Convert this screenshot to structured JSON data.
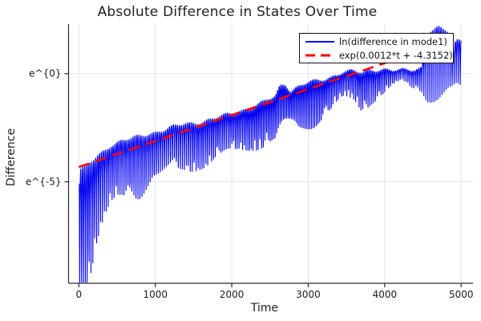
{
  "title": "Absolute Difference in States Over Time",
  "axes": {
    "x": {
      "label": "Time",
      "tick_labels": [
        "0",
        "1000",
        "2000",
        "3000",
        "4000",
        "5000"
      ],
      "tick_values": [
        0,
        1000,
        2000,
        3000,
        4000,
        5000
      ],
      "range": [
        -135,
        5155
      ]
    },
    "y": {
      "label": "Difference",
      "tick_labels": [
        "e^{0}",
        "e^{-5}"
      ],
      "tick_values_ln": [
        0,
        -5
      ],
      "range_ln": [
        -9.69,
        2.29
      ]
    }
  },
  "legend": {
    "items": [
      {
        "label": "ln(difference in mode1)",
        "color": "#0000ee",
        "style": "solid"
      },
      {
        "label": "exp(0.0012*t + -4.3152)",
        "color": "#ff0000",
        "style": "dashed"
      }
    ]
  },
  "colors": {
    "series_blue": "#0000ee",
    "fit_red": "#ff0000",
    "grid": "#e4e4e4",
    "spine": "#2a2a2a",
    "tick": "#2a2a2a"
  },
  "chart_data": {
    "type": "line",
    "title": "Absolute Difference in States Over Time",
    "xlabel": "Time",
    "ylabel": "Difference",
    "x_range": [
      -135,
      5155
    ],
    "y_range_ln": [
      -9.69,
      2.29
    ],
    "grid": true,
    "legend_position": "top-right",
    "series": [
      {
        "name": "ln(difference in mode1)",
        "color": "#0000ee",
        "style": "solid",
        "representation": "oscillating signal; ln of |difference| with downward spikes at zero crossings",
        "zero_crossing_spacing_t": 24,
        "envelope_t_lnTop_lnBottom": [
          [
            0,
            -4.5,
            -9.5
          ],
          [
            80,
            -4.35,
            -9.4
          ],
          [
            160,
            -4.1,
            -8.1
          ],
          [
            240,
            -3.85,
            -7.2
          ],
          [
            330,
            -3.55,
            -6.6
          ],
          [
            420,
            -3.3,
            -6.1
          ],
          [
            550,
            -3.1,
            -5.6
          ],
          [
            700,
            -3.0,
            -5.2
          ],
          [
            850,
            -2.85,
            -5.0
          ],
          [
            1000,
            -2.7,
            -4.8
          ],
          [
            1150,
            -2.55,
            -4.5
          ],
          [
            1300,
            -2.4,
            -4.4
          ],
          [
            1450,
            -2.3,
            -4.1
          ],
          [
            1600,
            -2.22,
            -3.9
          ],
          [
            1750,
            -2.1,
            -3.75
          ],
          [
            1900,
            -1.95,
            -3.65
          ],
          [
            2050,
            -1.78,
            -3.5
          ],
          [
            2200,
            -1.62,
            -3.2
          ],
          [
            2350,
            -1.45,
            -3.0
          ],
          [
            2480,
            -1.2,
            -2.85
          ],
          [
            2570,
            -1.05,
            -2.9
          ],
          [
            2630,
            -0.55,
            -2.9
          ],
          [
            2700,
            -0.45,
            -2.8
          ],
          [
            2770,
            -0.8,
            -2.5
          ],
          [
            2870,
            -0.62,
            -2.3
          ],
          [
            3000,
            -0.42,
            -2.1
          ],
          [
            3150,
            -0.3,
            -1.8
          ],
          [
            3300,
            -0.15,
            -1.5
          ],
          [
            3450,
            0.05,
            -1.1
          ],
          [
            3600,
            0.1,
            -1.15
          ],
          [
            3700,
            0.05,
            -1.45
          ],
          [
            3800,
            0.18,
            -1.1
          ],
          [
            3950,
            0.2,
            -0.8
          ],
          [
            4100,
            0.12,
            -0.5
          ],
          [
            4220,
            0.15,
            -0.3
          ],
          [
            4350,
            0.2,
            -0.6
          ],
          [
            4480,
            0.28,
            -0.6
          ],
          [
            4550,
            1.9,
            -0.55
          ],
          [
            4700,
            2.1,
            -0.5
          ],
          [
            4830,
            1.95,
            -0.55
          ],
          [
            4880,
            0.9,
            -0.6
          ],
          [
            4930,
            1.55,
            -0.7
          ],
          [
            5000,
            1.6,
            -0.85
          ]
        ]
      },
      {
        "name": "exp(0.0012*t + -4.3152)",
        "color": "#ff0000",
        "style": "dashed",
        "fit": {
          "slope": 0.0012,
          "intercept": -4.3152,
          "t_range": [
            0,
            4900
          ]
        }
      }
    ]
  }
}
